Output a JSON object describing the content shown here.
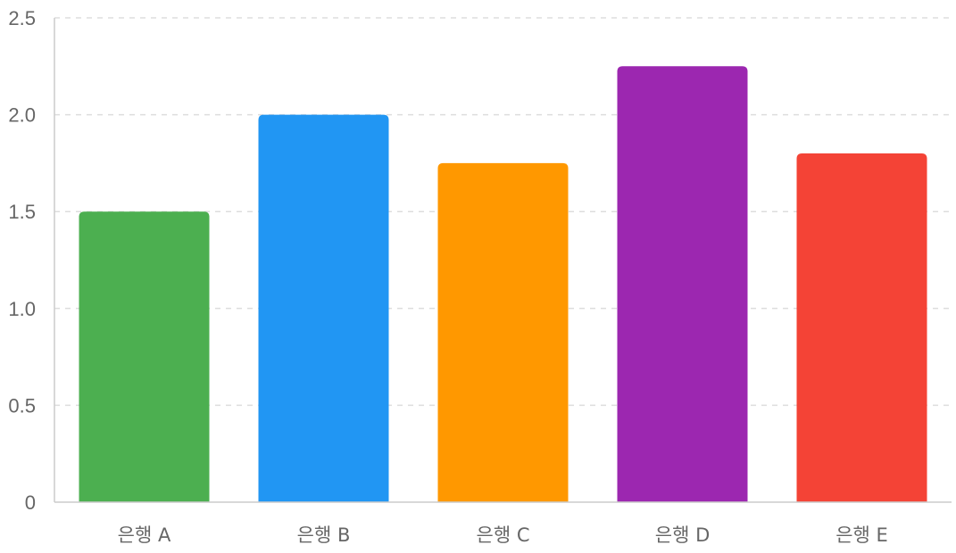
{
  "chart_data": {
    "type": "bar",
    "categories": [
      "은행 A",
      "은행 B",
      "은행 C",
      "은행 D",
      "은행 E"
    ],
    "values": [
      1.5,
      2.0,
      1.75,
      2.25,
      1.8
    ],
    "colors": [
      "#4caf50",
      "#2196f3",
      "#ff9800",
      "#9c27b0",
      "#f44336"
    ],
    "title": "",
    "xlabel": "",
    "ylabel": "",
    "ylim": [
      0,
      2.5
    ],
    "yticks": [
      0,
      0.5,
      1.0,
      1.5,
      2.0,
      2.5
    ],
    "ytick_labels": [
      "0",
      "0.5",
      "1.0",
      "1.5",
      "2.0",
      "2.5"
    ],
    "grid": true,
    "legend": "none"
  }
}
